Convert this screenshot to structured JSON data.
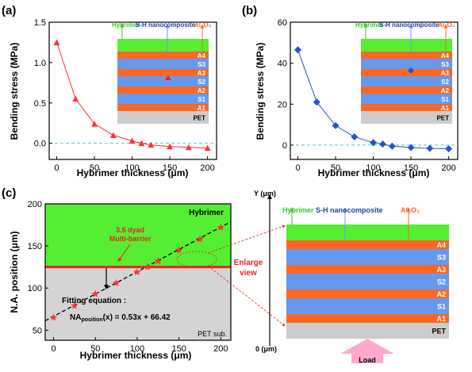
{
  "panels": {
    "a": {
      "label": "(a)",
      "chart_data": {
        "type": "line",
        "x": [
          0,
          25,
          50,
          75,
          100,
          112.5,
          125,
          150,
          175,
          200
        ],
        "y": [
          1.25,
          0.55,
          0.24,
          0.1,
          0.03,
          0.0,
          -0.02,
          -0.04,
          -0.05,
          -0.06
        ],
        "xlabel": "Hybrimer thickness (μm)",
        "ylabel": "Bending stress (MPa)",
        "xlim": [
          -10,
          212
        ],
        "ylim": [
          -0.2,
          1.5
        ],
        "xticks": [
          "0",
          "50",
          "100",
          "150",
          "200"
        ],
        "yticks": [
          "0.0",
          "0.5",
          "1.0",
          "1.5"
        ],
        "color": "#ff3333",
        "marker": "triangle",
        "zero_line": true
      },
      "inset": {
        "top_labels": [
          "Hybrimer",
          "S-H nanocomposite",
          "Al₂O₃"
        ],
        "layers": [
          "A4",
          "S3",
          "A3",
          "S2",
          "A2",
          "S1",
          "A1",
          "PET"
        ]
      }
    },
    "b": {
      "label": "(b)",
      "chart_data": {
        "type": "line",
        "x": [
          0,
          25,
          50,
          75,
          100,
          112.5,
          125,
          150,
          175,
          200
        ],
        "y": [
          46.5,
          21,
          9.5,
          4,
          1.2,
          0.5,
          -0.5,
          -1.2,
          -1.6,
          -1.8
        ],
        "xlabel": "Hybrimer thickness (μm)",
        "ylabel": "Bending stress (MPa)",
        "xlim": [
          -10,
          212
        ],
        "ylim": [
          -7,
          60
        ],
        "xticks": [
          "0",
          "50",
          "100",
          "150",
          "200"
        ],
        "yticks": [
          "0",
          "20",
          "40",
          "60"
        ],
        "color": "#2255cc",
        "marker": "diamond",
        "zero_line": true
      },
      "inset": {
        "top_labels": [
          "Hybrimer",
          "S-H nanocomposite",
          "Al₂O₃"
        ],
        "layers": [
          "A4",
          "S3",
          "A3",
          "S2",
          "A2",
          "S1",
          "A1",
          "PET"
        ]
      }
    },
    "c": {
      "label": "(c)",
      "chart_data": {
        "type": "scatter",
        "x": [
          0,
          25,
          50,
          75,
          100,
          112.5,
          125,
          150,
          175,
          200
        ],
        "y": [
          65,
          79,
          93,
          106,
          119,
          125,
          132,
          145,
          158,
          172
        ],
        "xlabel": "Hybrimer thickness (μm)",
        "ylabel": "N.A. position (μm)",
        "xlim": [
          -10,
          212
        ],
        "ylim": [
          38,
          200
        ],
        "xticks": [
          "0",
          "50",
          "100",
          "150",
          "200"
        ],
        "yticks": [
          "50",
          "100",
          "150",
          "200"
        ],
        "fit_line": {
          "slope": 0.53,
          "intercept": 66.42
        },
        "barrier_position": 125,
        "color": "#ff3333",
        "marker": "star"
      },
      "region_labels": {
        "top": "Hybrimer",
        "bottom": "PET sub."
      },
      "barrier_label_1": "3.5 dyad",
      "barrier_label_2": "Multi-barrier",
      "fit_title": "Fitting equation :",
      "fit_eq_prefix": "NA",
      "fit_eq_sub": "position",
      "fit_eq_suffix": "(x) = 0.53x + 66.42",
      "enlarge_label_1": "Enlarge",
      "enlarge_label_2": "view"
    },
    "d": {
      "axis_label_top": "Y (μm)",
      "axis_label_bottom": "0 (μm)",
      "top_labels": [
        "Hybrimer",
        "S-H nanocomposite",
        "Al₂O₃"
      ],
      "layers": [
        "A4",
        "S3",
        "A3",
        "S2",
        "A2",
        "S1",
        "A1",
        "PET"
      ],
      "load_label": "Load"
    }
  },
  "colors": {
    "hybrimer": "#55ee33",
    "alumina": "#ff6622",
    "nanocomposite": "#6699ee",
    "pet": "#cccccc",
    "accent_red": "#ee2222",
    "load": "#ffaacc"
  }
}
